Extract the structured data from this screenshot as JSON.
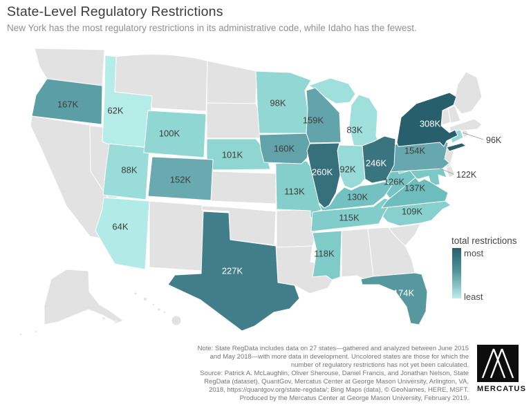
{
  "header": {
    "title": "State-Level Regulatory Restrictions",
    "subtitle": "New York has the most regulatory restrictions in its administrative code, while Idaho has the fewest."
  },
  "legend": {
    "title": "total restrictions",
    "max_label": "most",
    "min_label": "least",
    "color_most": "#275f6b",
    "color_least": "#bdeeea"
  },
  "notes": {
    "lines": [
      "Note: State RegData includes data on 27 states—gathered and analyzed between June 2015",
      "and May 2018—with more data in development. Uncolored states are those for which the",
      "number of regulatory restrictions has not yet been calculated.",
      "Source: Patrick A. McLaughlin, Oliver Sherouse, Daniel Francis, and Jonathan Nelson, State",
      "RegData (dataset), QuantGov, Mercatus Center at George Mason University, Arlington, VA,",
      "2018, https://quantgov.org/state-regdata/; Bing Maps (data), © GeoNames, HERE, MSFT.",
      "Produced by the Mercatus Center at George Mason University, February 2019."
    ]
  },
  "logo": {
    "text": "MERCATUS"
  },
  "chart_data": {
    "type": "choropleth",
    "title": "State-Level Regulatory Restrictions",
    "subtitle": "New York has the most regulatory restrictions in its administrative code, while Idaho has the fewest.",
    "value_unit": "total regulatory restrictions (K = thousands)",
    "legend": {
      "title": "total restrictions",
      "max_label": "most",
      "min_label": "least",
      "position": "right"
    },
    "color_scale": {
      "least": "#bdeeea",
      "most": "#275f6b"
    },
    "uncolored_fill": "#e2e2e2",
    "uncolored_meaning": "number of regulatory restrictions not yet calculated",
    "states": [
      {
        "code": "ID",
        "name": "Idaho",
        "label": "62K",
        "value_thousands": 62,
        "fill": "#b5ece8",
        "label_color": "#3d3d3d"
      },
      {
        "code": "AZ",
        "name": "Arizona",
        "label": "64K",
        "value_thousands": 64,
        "fill": "#b1eae6",
        "label_color": "#3d3d3d"
      },
      {
        "code": "MI",
        "name": "Michigan",
        "label": "83K",
        "value_thousands": 83,
        "fill": "#9fe0dd",
        "label_color": "#3d3d3d"
      },
      {
        "code": "UT",
        "name": "Utah",
        "label": "88K",
        "value_thousands": 88,
        "fill": "#9adcd9",
        "label_color": "#3d3d3d"
      },
      {
        "code": "IN",
        "name": "Indiana",
        "label": "92K",
        "value_thousands": 92,
        "fill": "#97dad7",
        "label_color": "#3d3d3d"
      },
      {
        "code": "CT",
        "name": "Connecticut",
        "label": "96K",
        "value_thousands": 96,
        "fill": "#94d8d5",
        "label_color": "#3d3d3d",
        "callout": true
      },
      {
        "code": "MN",
        "name": "Minnesota",
        "label": "98K",
        "value_thousands": 98,
        "fill": "#92d7d4",
        "label_color": "#3d3d3d"
      },
      {
        "code": "WY",
        "name": "Wyoming",
        "label": "100K",
        "value_thousands": 100,
        "fill": "#90d6d3",
        "label_color": "#3d3d3d"
      },
      {
        "code": "NE",
        "name": "Nebraska",
        "label": "101K",
        "value_thousands": 101,
        "fill": "#8fd5d2",
        "label_color": "#3d3d3d"
      },
      {
        "code": "NC",
        "name": "North Carolina",
        "label": "109K",
        "value_thousands": 109,
        "fill": "#87d0ce",
        "label_color": "#3d3d3d"
      },
      {
        "code": "MO",
        "name": "Missouri",
        "label": "113K",
        "value_thousands": 113,
        "fill": "#84cecb",
        "label_color": "#3d3d3d"
      },
      {
        "code": "TN",
        "name": "Tennessee",
        "label": "115K",
        "value_thousands": 115,
        "fill": "#82cdca",
        "label_color": "#3d3d3d"
      },
      {
        "code": "MS",
        "name": "Mississippi",
        "label": "118K",
        "value_thousands": 118,
        "fill": "#7fcbc8",
        "label_color": "#3d3d3d"
      },
      {
        "code": "MD",
        "name": "Maryland",
        "label": "122K",
        "value_thousands": 122,
        "fill": "#7bc8c6",
        "label_color": "#3d3d3d",
        "callout": true
      },
      {
        "code": "WV",
        "name": "West Virginia",
        "label": "126K",
        "value_thousands": 126,
        "fill": "#77c5c3",
        "label_color": "#3d3d3d"
      },
      {
        "code": "KY",
        "name": "Kentucky",
        "label": "130K",
        "value_thousands": 130,
        "fill": "#73c2c1",
        "label_color": "#3d3d3d"
      },
      {
        "code": "VA",
        "name": "Virginia",
        "label": "137K",
        "value_thousands": 137,
        "fill": "#6cbdbc",
        "label_color": "#3d3d3d"
      },
      {
        "code": "CO",
        "name": "Colorado",
        "label": "152K",
        "value_thousands": 152,
        "fill": "#68aab0",
        "label_color": "#3d3d3d"
      },
      {
        "code": "PA",
        "name": "Pennsylvania",
        "label": "154K",
        "value_thousands": 154,
        "fill": "#66a8ae",
        "label_color": "#3d3d3d"
      },
      {
        "code": "WI",
        "name": "Wisconsin",
        "label": "159K",
        "value_thousands": 159,
        "fill": "#62a4aa",
        "label_color": "#3d3d3d"
      },
      {
        "code": "IA",
        "name": "Iowa",
        "label": "160K",
        "value_thousands": 160,
        "fill": "#61a3a9",
        "label_color": "#3d3d3d"
      },
      {
        "code": "OR",
        "name": "Oregon",
        "label": "167K",
        "value_thousands": 167,
        "fill": "#5c9ea5",
        "label_color": "#3d3d3d"
      },
      {
        "code": "FL",
        "name": "Florida",
        "label": "174K",
        "value_thousands": 174,
        "fill": "#57989f",
        "label_color": "#ffffff"
      },
      {
        "code": "TX",
        "name": "Texas",
        "label": "227K",
        "value_thousands": 227,
        "fill": "#417e89",
        "label_color": "#ffffff"
      },
      {
        "code": "OH",
        "name": "Ohio",
        "label": "246K",
        "value_thousands": 246,
        "fill": "#3a757f",
        "label_color": "#ffffff"
      },
      {
        "code": "IL",
        "name": "Illinois",
        "label": "260K",
        "value_thousands": 260,
        "fill": "#35707b",
        "label_color": "#ffffff"
      },
      {
        "code": "NY",
        "name": "New York",
        "label": "308K",
        "value_thousands": 308,
        "fill": "#27606c",
        "label_color": "#ffffff"
      }
    ]
  }
}
